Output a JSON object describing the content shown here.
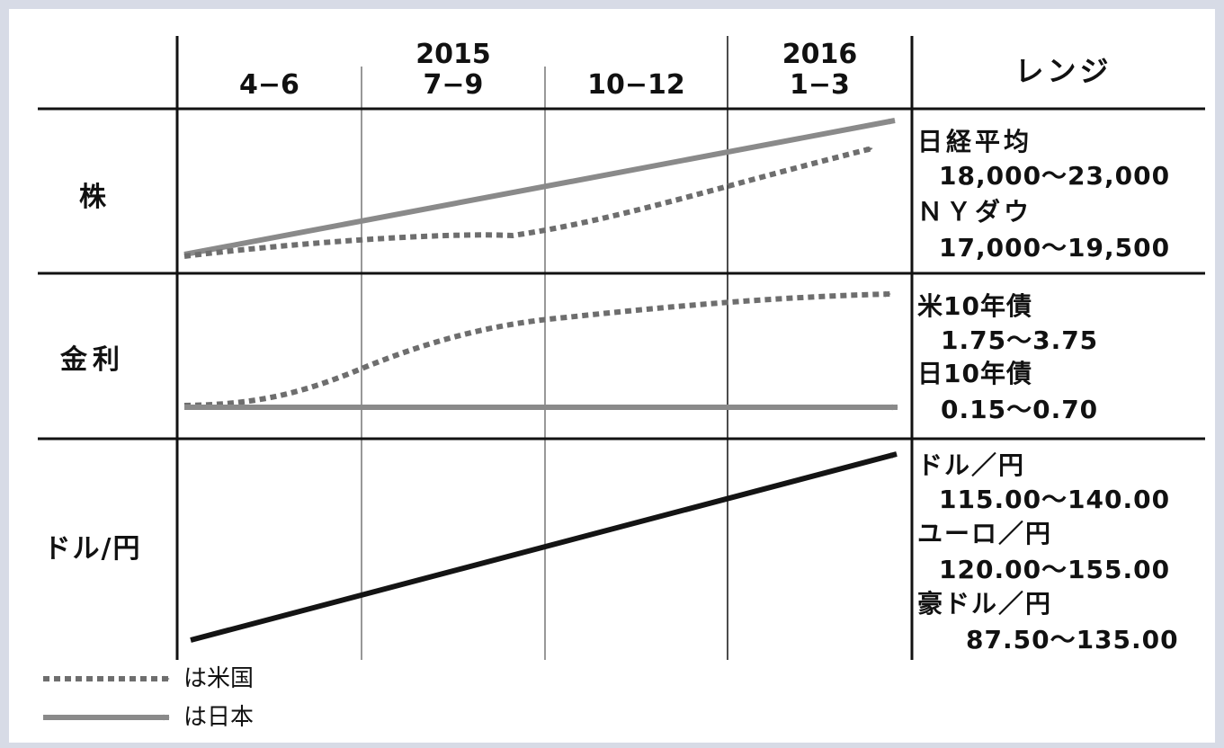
{
  "columns": {
    "year_2015": "2015",
    "year_2016": "2016",
    "q1": "4−6",
    "q2": "7−9",
    "q3": "10−12",
    "q4": "1−3",
    "range_header": "レンジ"
  },
  "rows": {
    "stocks": {
      "label": "株",
      "ranges": [
        "日経平均",
        "18,000〜23,000",
        "ＮＹダウ",
        "17,000〜19,500"
      ]
    },
    "rates": {
      "label": "金利",
      "ranges": [
        "米10年債",
        "1.75〜3.75",
        "日10年債",
        "0.15〜0.70"
      ]
    },
    "fx": {
      "label": "ドル/円",
      "ranges": [
        "ドル／円",
        "115.00〜140.00",
        "ユーロ／円",
        "120.00〜155.00",
        "豪ドル／円",
        "87.50〜135.00"
      ]
    }
  },
  "legend": {
    "us": "は米国",
    "japan": "は日本"
  },
  "colors": {
    "japan_line": "#8a8a8a",
    "us_line": "#6e6e6e",
    "fx_line": "#141414",
    "grid_line": "#111111",
    "background": "#d7dbe6"
  }
}
